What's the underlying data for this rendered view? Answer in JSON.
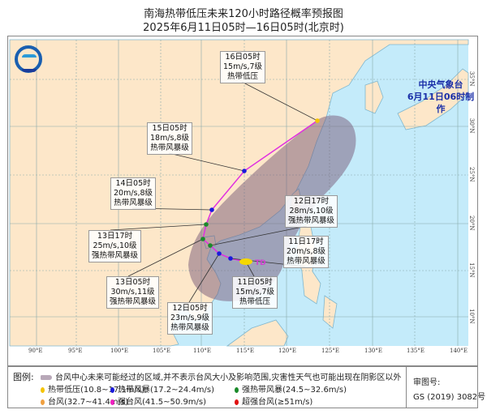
{
  "header": {
    "title": "南海热带低压未来120小时路径概率预报图",
    "subtitle": "2025年6月11日05时—16日05时(北京时)"
  },
  "org": {
    "name": "中央气象台",
    "made": "6月11日06时制作"
  },
  "axes": {
    "lon": [
      "90°E",
      "95°E",
      "100°E",
      "105°E",
      "110°E",
      "115°E",
      "120°E",
      "125°E",
      "130°E",
      "135°E",
      "140°E"
    ],
    "lat": [
      "35°N",
      "30°N",
      "25°N",
      "20°N",
      "15°N",
      "10°N"
    ]
  },
  "storm_label": "TD",
  "forecast_points": [
    {
      "time": "11日05时",
      "speed": "15m/s,7级",
      "grade": "热带低压",
      "color": "#f5c400"
    },
    {
      "time": "11日17时",
      "speed": "20m/s,8级",
      "grade": "热带风暴级",
      "color": "#1a1adc"
    },
    {
      "time": "12日05时",
      "speed": "23m/s,9级",
      "grade": "热带风暴级",
      "color": "#1a1adc"
    },
    {
      "time": "12日17时",
      "speed": "28m/s,10级",
      "grade": "强热带风暴级",
      "color": "#1a8a2a"
    },
    {
      "time": "13日05时",
      "speed": "30m/s,11级",
      "grade": "强热带风暴级",
      "color": "#1a8a2a"
    },
    {
      "time": "13日17时",
      "speed": "25m/s,10级",
      "grade": "强热带风暴级",
      "color": "#1a8a2a"
    },
    {
      "time": "14日05时",
      "speed": "20m/s,8级",
      "grade": "热带风暴级",
      "color": "#1a1adc"
    },
    {
      "time": "15日05时",
      "speed": "18m/s,8级",
      "grade": "热带风暴级",
      "color": "#1a1adc"
    },
    {
      "time": "16日05时",
      "speed": "15m/s,7级",
      "grade": "热带低压",
      "color": "#f5c400"
    }
  ],
  "legend": {
    "label": "图例:",
    "cone_text": "台风中心未来可能经过的区域,并不表示台风大小及影响范围,灾害性天气也可能出现在阴影区以外",
    "items": [
      {
        "text": "热带低压(10.8~17.1m/s)",
        "color": "#f5c400"
      },
      {
        "text": "热带风暴(17.2~24.4m/s)",
        "color": "#1a1adc"
      },
      {
        "text": "强热带风暴(24.5~32.6m/s)",
        "color": "#1a8a2a"
      },
      {
        "text": "台风(32.7~41.4m/s)",
        "color": "#f0a040"
      },
      {
        "text": "强台风(41.5~50.9m/s)",
        "color": "#f020c0"
      },
      {
        "text": "超强台风(≥51m/s)",
        "color": "#e01010"
      }
    ],
    "review_label": "审图号:",
    "review_no": "GS (2019) 3082号"
  }
}
